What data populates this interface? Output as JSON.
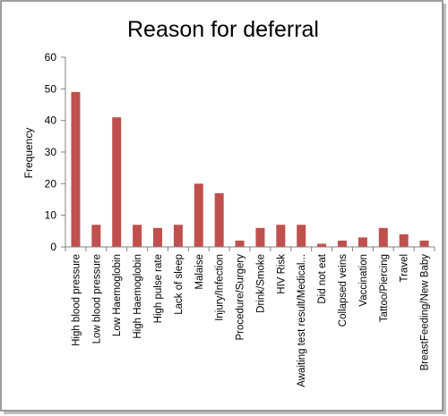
{
  "chart_data": {
    "type": "bar",
    "title": "Reason for deferral",
    "xlabel": "",
    "ylabel": "Frequency",
    "ylim": [
      0,
      60
    ],
    "yticks": [
      0,
      10,
      20,
      30,
      40,
      50,
      60
    ],
    "grid": false,
    "categories": [
      "High blood pressure",
      "Low blood pressure",
      "Low Haemoglobin",
      "High Haemoglobin",
      "High pulse rate",
      "Lack of sleep",
      "Malaise",
      "Injury/Infection",
      "Procedure/Surgery",
      "Drink/Smoke",
      "HIV Risk",
      "Awaiting test result/Medical...",
      "Did not eat",
      "Collapsed veins",
      "Vaccination",
      "Tattoo/Piercing",
      "Travel",
      "BreastFeeding/New Baby"
    ],
    "values": [
      49,
      7,
      41,
      7,
      6,
      7,
      20,
      17,
      2,
      6,
      7,
      7,
      1,
      2,
      3,
      6,
      4,
      2
    ],
    "colors": {
      "bar": "#c0504d",
      "axis": "#808080",
      "frame": "#7f7f7f"
    }
  }
}
